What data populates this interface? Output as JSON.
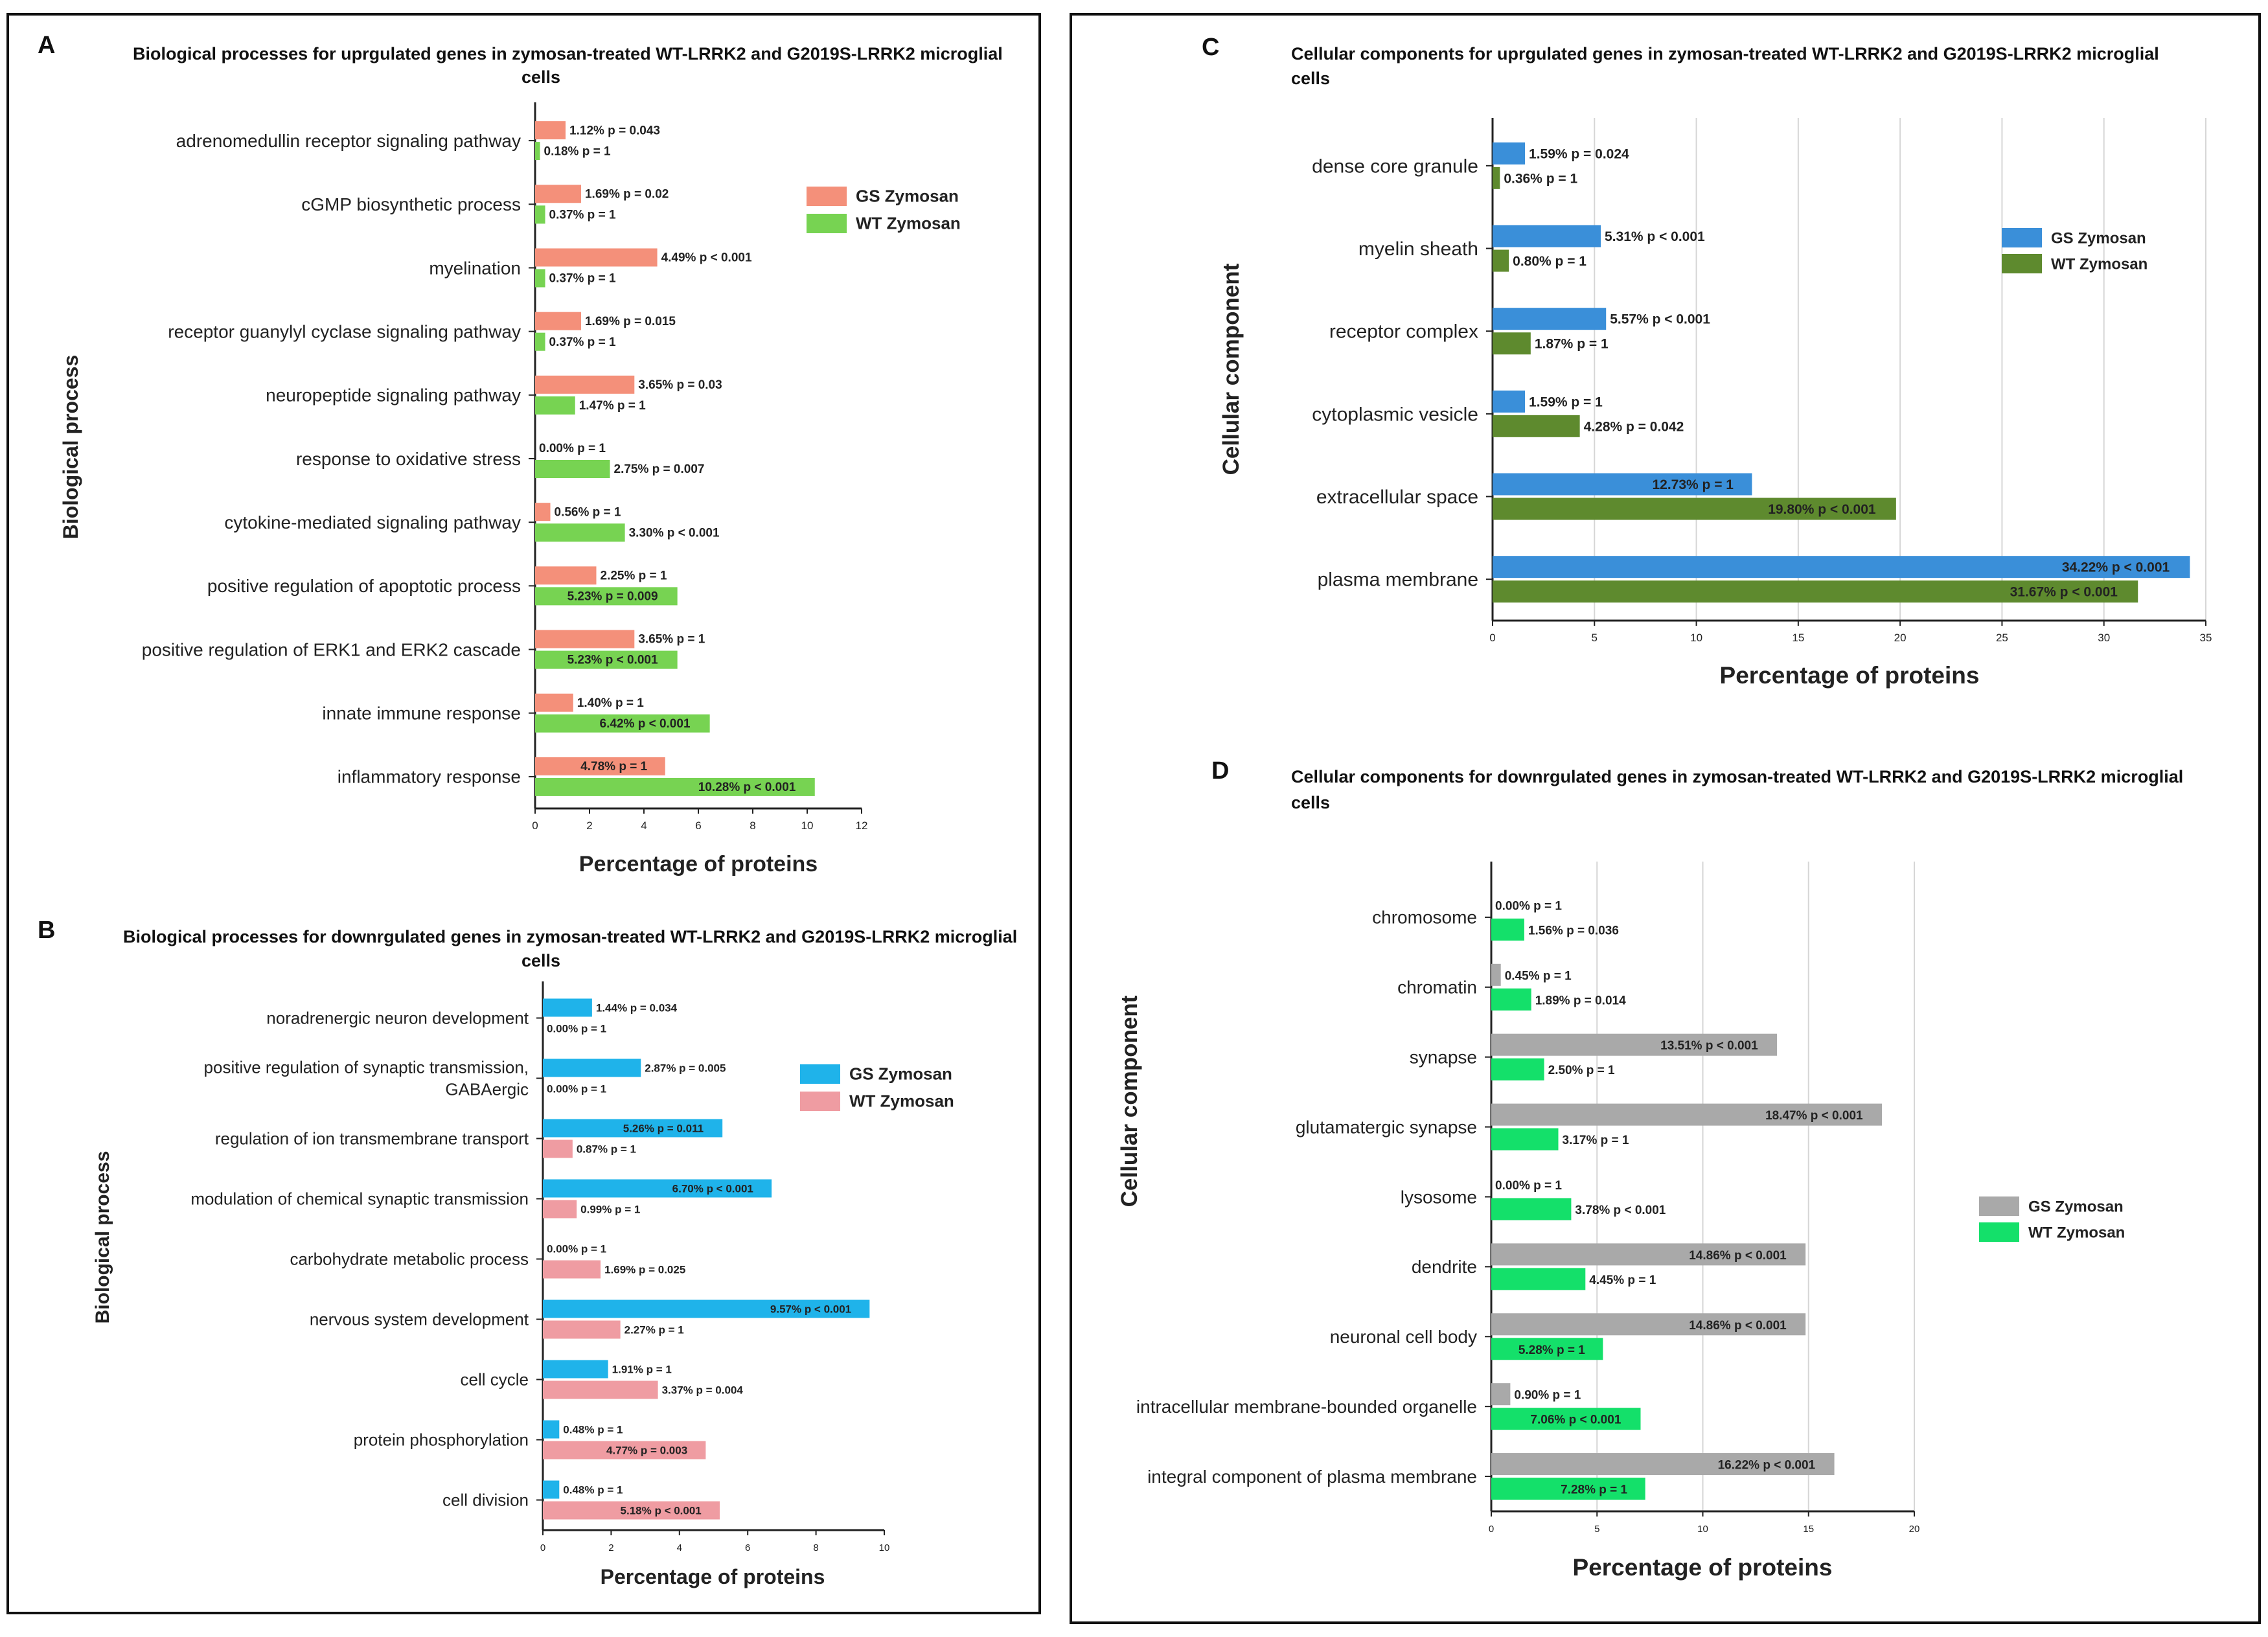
{
  "chart_data": [
    {
      "letter": "A",
      "type": "bar",
      "orientation": "horizontal",
      "title": "Biological processes for uprgulated genes in zymosan-treated WT-LRRK2 and G2019S-LRRK2 microglial cells",
      "xlabel": "Percentage of proteins",
      "ylabel": "Biological process",
      "xlim": [
        0,
        12
      ],
      "xticks": [
        0,
        2,
        4,
        6,
        8,
        10,
        12
      ],
      "grid": false,
      "legend_position": "top-right",
      "categories": [
        "adrenomedullin receptor signaling pathway",
        "cGMP biosynthetic process",
        "myelination",
        "receptor guanylyl cyclase signaling pathway",
        "neuropeptide signaling pathway",
        "response to oxidative stress",
        "cytokine-mediated signaling pathway",
        "positive regulation of apoptotic process",
        "positive regulation of ERK1 and ERK2 cascade",
        "innate immune response",
        "inflammatory response"
      ],
      "series": [
        {
          "name": "GS Zymosan",
          "color": "#f4907a",
          "values": [
            1.12,
            1.69,
            4.49,
            1.69,
            3.65,
            0.0,
            0.56,
            2.25,
            3.65,
            1.4,
            4.78
          ],
          "labels": [
            "1.12%  p = 0.043",
            "1.69%  p = 0.02",
            "4.49%  p < 0.001",
            "1.69%  p = 0.015",
            "3.65%  p = 0.03",
            "0.00%  p = 1",
            "0.56%  p = 1",
            "2.25%  p = 1",
            "3.65%  p = 1",
            "1.40%  p = 1",
            "4.78%  p = 1"
          ]
        },
        {
          "name": "WT Zymosan",
          "color": "#77d352",
          "values": [
            0.18,
            0.37,
            0.37,
            0.37,
            1.47,
            2.75,
            3.3,
            5.23,
            5.23,
            6.42,
            10.28
          ],
          "labels": [
            "0.18%  p = 1",
            "0.37%  p = 1",
            "0.37%  p = 1",
            "0.37%  p = 1",
            "1.47%  p = 1",
            "2.75%  p = 0.007",
            "3.30%  p < 0.001",
            "5.23%  p = 0.009",
            "5.23%  p < 0.001",
            "6.42%  p < 0.001",
            "10.28%  p < 0.001"
          ]
        }
      ]
    },
    {
      "letter": "B",
      "type": "bar",
      "orientation": "horizontal",
      "title": "Biological processes for downrgulated genes in zymosan-treated WT-LRRK2 and G2019S-LRRK2 microglial cells",
      "xlabel": "Percentage of proteins",
      "ylabel": "Biological process",
      "xlim": [
        0,
        10
      ],
      "xticks": [
        0,
        2,
        4,
        6,
        8,
        10
      ],
      "grid": false,
      "legend_position": "top-right",
      "categories": [
        "noradrenergic neuron development",
        "positive regulation of synaptic transmission, GABAergic",
        "regulation of ion transmembrane transport",
        "modulation of chemical synaptic transmission",
        "carbohydrate metabolic process",
        "nervous system development",
        "cell cycle",
        "protein phosphorylation",
        "cell division"
      ],
      "series": [
        {
          "name": "GS Zymosan",
          "color": "#1fb3ea",
          "values": [
            1.44,
            2.87,
            5.26,
            6.7,
            0.0,
            9.57,
            1.91,
            0.48,
            0.48
          ],
          "labels": [
            "1.44%  p = 0.034",
            "2.87%  p = 0.005",
            "5.26%  p = 0.011",
            "6.70%  p < 0.001",
            "0.00%  p = 1",
            "9.57%  p < 0.001",
            "1.91%  p = 1",
            "0.48%  p = 1",
            "0.48%  p = 1"
          ]
        },
        {
          "name": "WT Zymosan",
          "color": "#ef9ca2",
          "values": [
            0.0,
            0.0,
            0.87,
            0.99,
            1.69,
            2.27,
            3.37,
            4.77,
            5.18
          ],
          "labels": [
            "0.00%  p = 1",
            "0.00%  p = 1",
            "0.87%  p = 1",
            "0.99%  p = 1",
            "1.69%  p = 0.025",
            "2.27%  p = 1",
            "3.37%  p = 0.004",
            "4.77%  p = 0.003",
            "5.18%  p < 0.001"
          ]
        }
      ]
    },
    {
      "letter": "C",
      "type": "bar",
      "orientation": "horizontal",
      "title": "Cellular components for uprgulated genes in zymosan-treated WT-LRRK2 and G2019S-LRRK2 microglial cells",
      "xlabel": "Percentage of proteins",
      "ylabel": "Cellular component",
      "xlim": [
        0,
        35
      ],
      "xticks": [
        0,
        5,
        10,
        15,
        20,
        25,
        30,
        35
      ],
      "grid": true,
      "legend_position": "top-right",
      "categories": [
        "dense core granule",
        "myelin sheath",
        "receptor complex",
        "cytoplasmic vesicle",
        "extracellular space",
        "plasma membrane"
      ],
      "series": [
        {
          "name": "GS Zymosan",
          "color": "#3a8fd9",
          "values": [
            1.59,
            5.31,
            5.57,
            1.59,
            12.73,
            34.22
          ],
          "labels": [
            "1.59%  p = 0.024",
            "5.31%  p < 0.001",
            "5.57%  p < 0.001",
            "1.59%  p = 1",
            "12.73%  p = 1",
            "34.22%  p < 0.001"
          ]
        },
        {
          "name": "WT Zymosan",
          "color": "#5e8a2e",
          "values": [
            0.36,
            0.8,
            1.87,
            4.28,
            19.8,
            31.67
          ],
          "labels": [
            "0.36%  p = 1",
            "0.80%  p = 1",
            "1.87%  p = 1",
            "4.28%  p = 0.042",
            "19.80%  p < 0.001",
            "31.67%  p < 0.001"
          ]
        }
      ]
    },
    {
      "letter": "D",
      "type": "bar",
      "orientation": "horizontal",
      "title": "Cellular components for downrgulated genes in zymosan-treated WT-LRRK2 and G2019S-LRRK2 microglial cells",
      "xlabel": "Percentage of proteins",
      "ylabel": "Cellular component",
      "xlim": [
        0,
        20
      ],
      "xticks": [
        0,
        5,
        10,
        15,
        20
      ],
      "grid": true,
      "legend_position": "right",
      "categories": [
        "chromosome",
        "chromatin",
        "synapse",
        "glutamatergic synapse",
        "lysosome",
        "dendrite",
        "neuronal cell body",
        "intracellular membrane-bounded organelle",
        "integral component of plasma membrane"
      ],
      "series": [
        {
          "name": "GS Zymosan",
          "color": "#a9a9a9",
          "values": [
            0.0,
            0.45,
            13.51,
            18.47,
            0.0,
            14.86,
            14.86,
            0.9,
            16.22
          ],
          "labels": [
            "0.00%  p = 1",
            "0.45%  p = 1",
            "13.51%  p < 0.001",
            "18.47%  p < 0.001",
            "0.00%  p = 1",
            "14.86%  p < 0.001",
            "14.86%  p < 0.001",
            "0.90%  p = 1",
            "16.22%  p < 0.001"
          ]
        },
        {
          "name": "WT Zymosan",
          "color": "#14e06a",
          "values": [
            1.56,
            1.89,
            2.5,
            3.17,
            3.78,
            4.45,
            5.28,
            7.06,
            7.28
          ],
          "labels": [
            "1.56%  p = 0.036",
            "1.89%  p = 0.014",
            "2.50%  p = 1",
            "3.17%  p = 1",
            "3.78%  p < 0.001",
            "4.45%  p = 1",
            "5.28%  p = 1",
            "7.06%  p < 0.001",
            "7.28%  p = 1"
          ]
        }
      ]
    }
  ]
}
